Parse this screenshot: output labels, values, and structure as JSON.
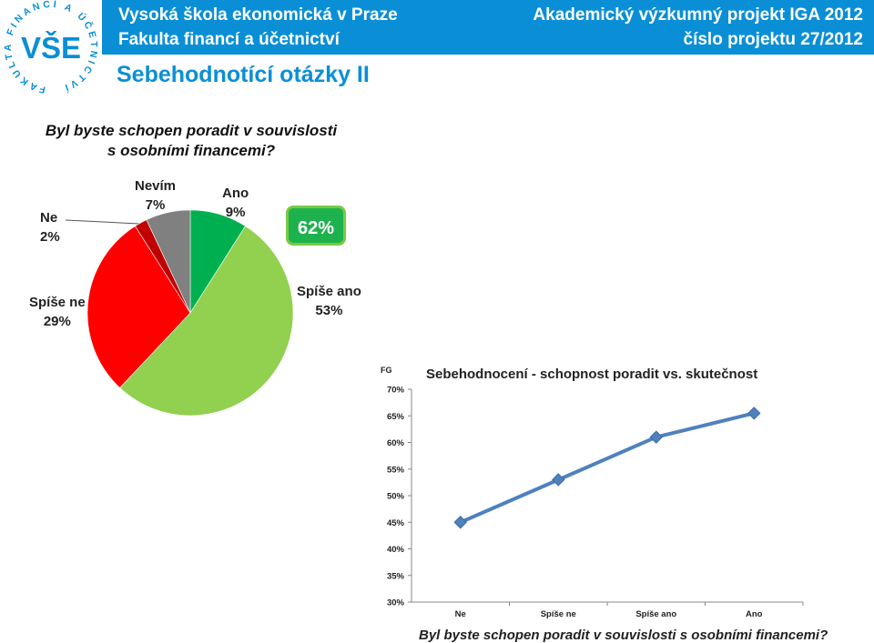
{
  "header": {
    "left_line1": "Vysoká škola ekonomická v Praze",
    "left_line2": "Fakulta financí a účetnictví",
    "right_line1": "Akademický výzkumný projekt IGA 2012",
    "right_line2": "číslo projektu 27/2012"
  },
  "logo": {
    "text": "VŠE",
    "ring_text": "FAKULTA FINANCÍ A ÚČETNICTVÍ"
  },
  "slide": {
    "title": "Sebehodnotící otázky II",
    "question_line1": "Byl byste schopen poradit v souvislosti",
    "question_line2": "s osobními financemi?",
    "badge": "62%"
  },
  "colors": {
    "header": "#0a8fd6",
    "ano": "#00b050",
    "spise_ano": "#92d050",
    "spise_ne": "#ff0000",
    "ne": "#c00000",
    "nevim": "#808080",
    "line": "#4f81bd"
  },
  "chart_data": [
    {
      "type": "pie",
      "slices": [
        {
          "label": "Ano",
          "value": 9,
          "display": "9%"
        },
        {
          "label": "Spíše ano",
          "value": 53,
          "display": "53%"
        },
        {
          "label": "Spíše ne",
          "value": 29,
          "display": "29%"
        },
        {
          "label": "Ne",
          "value": 2,
          "display": "2%"
        },
        {
          "label": "Nevím",
          "value": 7,
          "display": "7%"
        }
      ]
    },
    {
      "type": "line",
      "title": "Sebehodnocení - schopnost poradit vs. skutečnost",
      "ylabel": "FG",
      "xlabel": "Byl byste schopen poradit v souvislosti s osobními financemi?",
      "categories": [
        "Ne",
        "Spíše ne",
        "Spíše ano",
        "Ano"
      ],
      "values": [
        45,
        53,
        61,
        65.5
      ],
      "ylim": [
        30,
        70
      ],
      "yticks": [
        "30%",
        "35%",
        "40%",
        "45%",
        "50%",
        "55%",
        "60%",
        "65%",
        "70%"
      ],
      "grid": false
    }
  ]
}
